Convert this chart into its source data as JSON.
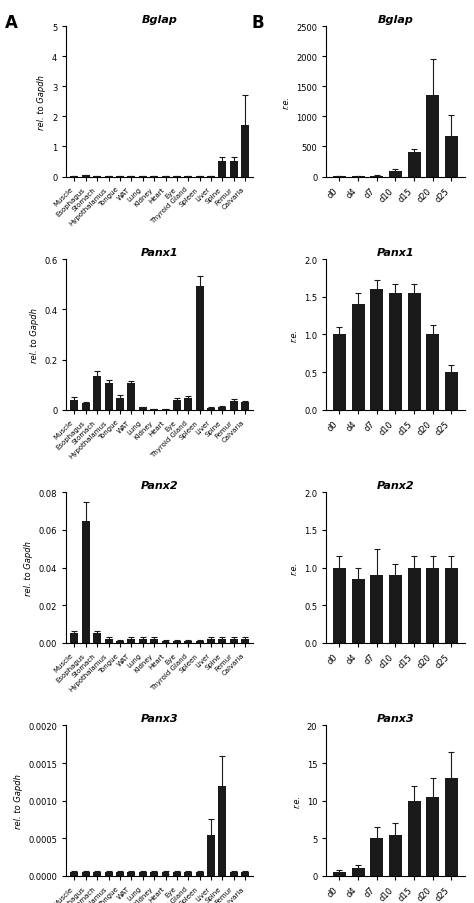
{
  "tissues": [
    "Muscle",
    "Esophagus",
    "Stomach",
    "Hypothalamus",
    "Tongue",
    "WAT",
    "Lung",
    "Kidney",
    "Heart",
    "Eye",
    "Thyroid Gland",
    "Spleen",
    "Liver",
    "Spine",
    "Femur",
    "Calvaria"
  ],
  "timepoints": [
    "d0",
    "d4",
    "d7",
    "d10",
    "d15",
    "d20",
    "d25"
  ],
  "bglap_tissue_vals": [
    0.02,
    0.05,
    0.02,
    0.01,
    0.01,
    0.01,
    0.01,
    0.01,
    0.01,
    0.01,
    0.01,
    0.01,
    0.01,
    0.5,
    0.5,
    1.7
  ],
  "bglap_tissue_err": [
    0.005,
    0.01,
    0.005,
    0.005,
    0.005,
    0.005,
    0.005,
    0.005,
    0.005,
    0.005,
    0.005,
    0.005,
    0.005,
    0.15,
    0.15,
    1.0
  ],
  "bglap_time_vals": [
    5,
    10,
    15,
    100,
    400,
    1350,
    680
  ],
  "bglap_time_err": [
    2,
    4,
    5,
    30,
    60,
    600,
    350
  ],
  "panx1_tissue_vals": [
    0.04,
    0.025,
    0.135,
    0.105,
    0.045,
    0.105,
    0.01,
    0.003,
    0.003,
    0.04,
    0.045,
    0.495,
    0.008,
    0.01,
    0.035,
    0.03
  ],
  "panx1_tissue_err": [
    0.01,
    0.006,
    0.02,
    0.012,
    0.015,
    0.01,
    0.002,
    0.001,
    0.001,
    0.008,
    0.01,
    0.04,
    0.002,
    0.003,
    0.008,
    0.006
  ],
  "panx1_time_vals": [
    1.0,
    1.4,
    1.6,
    1.55,
    1.55,
    1.0,
    0.5
  ],
  "panx1_time_err": [
    0.1,
    0.15,
    0.12,
    0.12,
    0.12,
    0.12,
    0.1
  ],
  "panx2_tissue_vals": [
    0.005,
    0.065,
    0.005,
    0.002,
    0.001,
    0.002,
    0.002,
    0.002,
    0.001,
    0.001,
    0.001,
    0.001,
    0.002,
    0.002,
    0.002,
    0.002
  ],
  "panx2_tissue_err": [
    0.001,
    0.01,
    0.001,
    0.001,
    0.0005,
    0.001,
    0.001,
    0.001,
    0.0005,
    0.0005,
    0.0005,
    0.0005,
    0.001,
    0.001,
    0.001,
    0.001
  ],
  "panx2_time_vals": [
    1.0,
    0.85,
    0.9,
    0.9,
    1.0,
    1.0,
    1.0
  ],
  "panx2_time_err": [
    0.15,
    0.15,
    0.35,
    0.15,
    0.15,
    0.15,
    0.15
  ],
  "panx3_tissue_vals": [
    5e-05,
    5e-05,
    5e-05,
    5e-05,
    5e-05,
    5e-05,
    5e-05,
    5e-05,
    5e-05,
    5e-05,
    5e-05,
    5e-05,
    0.00055,
    0.0012,
    5e-05,
    5e-05
  ],
  "panx3_tissue_err": [
    2e-05,
    2e-05,
    2e-05,
    2e-05,
    2e-05,
    2e-05,
    2e-05,
    2e-05,
    2e-05,
    2e-05,
    2e-05,
    2e-05,
    0.0002,
    0.0004,
    2e-05,
    2e-05
  ],
  "panx3_time_vals": [
    0.5,
    1.0,
    5.0,
    5.5,
    10.0,
    10.5,
    13.0
  ],
  "panx3_time_err": [
    0.3,
    0.5,
    1.5,
    1.5,
    2.0,
    2.5,
    3.5
  ],
  "ylim_bglap_tissue": [
    0,
    5
  ],
  "yticks_bglap_tissue": [
    0,
    1,
    2,
    3,
    4,
    5
  ],
  "ylim_panx1_tissue": [
    0,
    0.6
  ],
  "yticks_panx1_tissue": [
    0.0,
    0.2,
    0.4,
    0.6
  ],
  "ylim_panx2_tissue": [
    0,
    0.08
  ],
  "yticks_panx2_tissue": [
    0.0,
    0.02,
    0.04,
    0.06,
    0.08
  ],
  "ylim_panx3_tissue": [
    0,
    0.002
  ],
  "yticks_panx3_tissue": [
    0.0,
    0.0005,
    0.001,
    0.0015,
    0.002
  ],
  "ylim_bglap_time": [
    0,
    2500
  ],
  "yticks_bglap_time": [
    0,
    500,
    1000,
    1500,
    2000,
    2500
  ],
  "ylim_panx1_time": [
    0,
    2.0
  ],
  "yticks_panx1_time": [
    0.0,
    0.5,
    1.0,
    1.5,
    2.0
  ],
  "ylim_panx2_time": [
    0,
    2.0
  ],
  "yticks_panx2_time": [
    0.0,
    0.5,
    1.0,
    1.5,
    2.0
  ],
  "ylim_panx3_time": [
    0,
    20
  ],
  "yticks_panx3_time": [
    0,
    5,
    10,
    15,
    20
  ],
  "ylabel_left": "rel. to Gapdh",
  "ylabel_right": "r.e.",
  "bar_color": "#1a1a1a",
  "ecolor": "#1a1a1a",
  "capsize": 2.5,
  "bar_width": 0.7
}
